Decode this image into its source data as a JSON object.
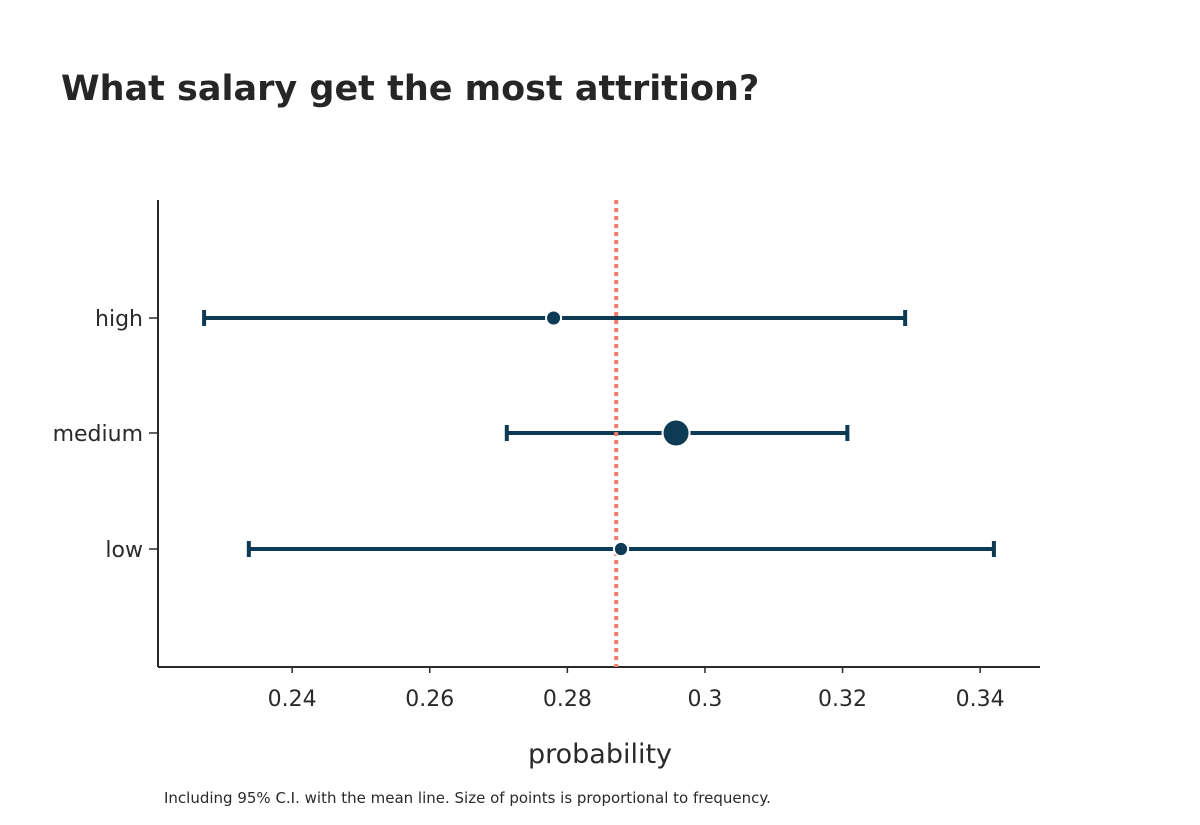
{
  "chart_data": {
    "type": "scatter",
    "title": "What salary get the most attrition?",
    "xlabel": "probability",
    "ylabel": "",
    "note": "Including 95% C.I. with the mean line. Size of points is proportional to frequency.",
    "categories": [
      "high",
      "medium",
      "low"
    ],
    "xlim": [
      0.2205,
      0.3487
    ],
    "xticks": [
      0.24,
      0.26,
      0.28,
      0.3,
      0.32,
      0.34
    ],
    "xtick_labels": [
      "0.24",
      "0.26",
      "0.28",
      "0.3",
      "0.32",
      "0.34"
    ],
    "mean_line": 0.2871,
    "points": [
      {
        "category": "high",
        "value": 0.278,
        "ci_low": 0.2272,
        "ci_high": 0.3291,
        "relative_size": 0.3
      },
      {
        "category": "medium",
        "value": 0.2958,
        "ci_low": 0.2712,
        "ci_high": 0.3207,
        "relative_size": 1.0
      },
      {
        "category": "low",
        "value": 0.2878,
        "ci_low": 0.2337,
        "ci_high": 0.342,
        "relative_size": 0.25
      }
    ],
    "grid": false,
    "colors": {
      "points": "#0d3a55",
      "mean_line": "#f47c6a",
      "axis": "#2a2a2a"
    }
  }
}
